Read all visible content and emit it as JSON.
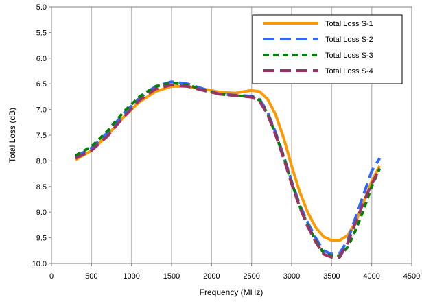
{
  "chart_data": {
    "type": "line",
    "title": "",
    "xlabel": "Frequency (MHz)",
    "ylabel": "Total Loss (dB)",
    "xlim": [
      0,
      4500
    ],
    "ylim": [
      5.0,
      10.0
    ],
    "y_reversed": true,
    "grid": "vertical",
    "legend_position": "top-right",
    "x_ticks": [
      0,
      500,
      1000,
      1500,
      2000,
      2500,
      3000,
      3500,
      4000,
      4500
    ],
    "y_ticks": [
      5.0,
      5.5,
      6.0,
      6.5,
      7.0,
      7.5,
      8.0,
      8.5,
      9.0,
      9.5,
      10.0
    ],
    "x_tick_labels": [
      "0",
      "500",
      "1000",
      "1500",
      "2000",
      "2500",
      "3000",
      "3500",
      "4000",
      "4500"
    ],
    "y_tick_labels": [
      "5.0",
      "5.5",
      "6.0",
      "6.5",
      "7.0",
      "7.5",
      "8.0",
      "8.5",
      "9.0",
      "9.5",
      "10.0"
    ],
    "series": [
      {
        "name": "Total Loss S-1",
        "color": "#FF9900",
        "style": "solid",
        "points": [
          [
            300,
            7.98
          ],
          [
            500,
            7.8
          ],
          [
            700,
            7.5
          ],
          [
            900,
            7.15
          ],
          [
            1100,
            6.85
          ],
          [
            1300,
            6.65
          ],
          [
            1500,
            6.55
          ],
          [
            1700,
            6.55
          ],
          [
            1900,
            6.6
          ],
          [
            2100,
            6.66
          ],
          [
            2300,
            6.68
          ],
          [
            2400,
            6.65
          ],
          [
            2500,
            6.63
          ],
          [
            2600,
            6.65
          ],
          [
            2700,
            6.8
          ],
          [
            2800,
            7.1
          ],
          [
            2900,
            7.55
          ],
          [
            3000,
            8.1
          ],
          [
            3100,
            8.6
          ],
          [
            3200,
            9.0
          ],
          [
            3300,
            9.3
          ],
          [
            3400,
            9.48
          ],
          [
            3500,
            9.55
          ],
          [
            3600,
            9.55
          ],
          [
            3700,
            9.45
          ],
          [
            3800,
            9.2
          ],
          [
            3900,
            8.8
          ],
          [
            4000,
            8.4
          ],
          [
            4100,
            8.1
          ]
        ]
      },
      {
        "name": "Total Loss S-2",
        "color": "#3366FF",
        "style": "dash",
        "points": [
          [
            300,
            7.92
          ],
          [
            500,
            7.75
          ],
          [
            700,
            7.45
          ],
          [
            900,
            7.08
          ],
          [
            1100,
            6.78
          ],
          [
            1300,
            6.55
          ],
          [
            1500,
            6.46
          ],
          [
            1700,
            6.5
          ],
          [
            1900,
            6.6
          ],
          [
            2100,
            6.7
          ],
          [
            2300,
            6.72
          ],
          [
            2500,
            6.74
          ],
          [
            2600,
            6.8
          ],
          [
            2700,
            7.05
          ],
          [
            2800,
            7.45
          ],
          [
            2900,
            7.9
          ],
          [
            3000,
            8.4
          ],
          [
            3100,
            8.85
          ],
          [
            3200,
            9.2
          ],
          [
            3300,
            9.5
          ],
          [
            3400,
            9.75
          ],
          [
            3500,
            9.82
          ],
          [
            3600,
            9.8
          ],
          [
            3700,
            9.55
          ],
          [
            3800,
            9.1
          ],
          [
            3900,
            8.65
          ],
          [
            4000,
            8.2
          ],
          [
            4100,
            7.95
          ]
        ]
      },
      {
        "name": "Total Loss S-3",
        "color": "#008000",
        "style": "short-dash",
        "points": [
          [
            300,
            7.9
          ],
          [
            500,
            7.72
          ],
          [
            700,
            7.42
          ],
          [
            900,
            7.05
          ],
          [
            1100,
            6.75
          ],
          [
            1300,
            6.55
          ],
          [
            1500,
            6.48
          ],
          [
            1700,
            6.52
          ],
          [
            1900,
            6.62
          ],
          [
            2100,
            6.7
          ],
          [
            2300,
            6.73
          ],
          [
            2500,
            6.75
          ],
          [
            2600,
            6.82
          ],
          [
            2700,
            7.08
          ],
          [
            2800,
            7.48
          ],
          [
            2900,
            7.92
          ],
          [
            3000,
            8.42
          ],
          [
            3100,
            8.88
          ],
          [
            3200,
            9.25
          ],
          [
            3300,
            9.55
          ],
          [
            3400,
            9.8
          ],
          [
            3500,
            9.85
          ],
          [
            3600,
            9.85
          ],
          [
            3700,
            9.68
          ],
          [
            3800,
            9.35
          ],
          [
            3900,
            8.95
          ],
          [
            4000,
            8.5
          ],
          [
            4100,
            8.15
          ]
        ]
      },
      {
        "name": "Total Loss S-4",
        "color": "#993366",
        "style": "dash",
        "points": [
          [
            300,
            7.95
          ],
          [
            500,
            7.8
          ],
          [
            700,
            7.52
          ],
          [
            900,
            7.15
          ],
          [
            1100,
            6.82
          ],
          [
            1300,
            6.6
          ],
          [
            1500,
            6.52
          ],
          [
            1700,
            6.55
          ],
          [
            1900,
            6.63
          ],
          [
            2100,
            6.7
          ],
          [
            2300,
            6.73
          ],
          [
            2500,
            6.76
          ],
          [
            2600,
            6.84
          ],
          [
            2700,
            7.1
          ],
          [
            2800,
            7.5
          ],
          [
            2900,
            7.95
          ],
          [
            3000,
            8.45
          ],
          [
            3100,
            8.9
          ],
          [
            3200,
            9.28
          ],
          [
            3300,
            9.58
          ],
          [
            3400,
            9.82
          ],
          [
            3500,
            9.88
          ],
          [
            3600,
            9.88
          ],
          [
            3700,
            9.6
          ],
          [
            3800,
            9.2
          ],
          [
            3900,
            8.8
          ],
          [
            4000,
            8.45
          ],
          [
            4100,
            8.15
          ]
        ]
      }
    ]
  }
}
